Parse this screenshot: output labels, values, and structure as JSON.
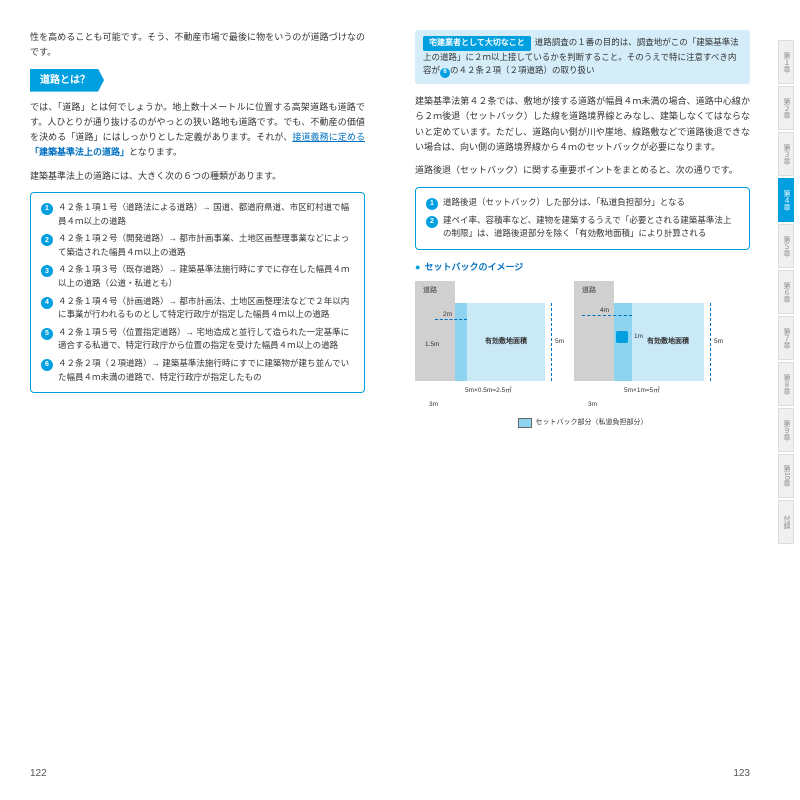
{
  "left": {
    "intro": "性を高めることも可能です。そう、不動産市場で最後に物をいうのが道路づけなのです。",
    "section": "道路とは？",
    "p1a": "では、「道路」とは何でしょうか。地上数十メートルに位置する高架道路も道路です。人ひとりが通り抜けるのがやっとの狭い路地も道路です。でも、不動産の価値を決める「道路」にはしっかりとした定義があります。それが、",
    "p1b": "接道義務に定める",
    "p1c": "「建築基準法上の道路」",
    "p1d": "となります。",
    "p2": "建築基準法上の道路には、大きく次の６つの種類があります。",
    "items": [
      {
        "n": "1",
        "t": "４２条１項１号（道路法による道路）→ 国道、都道府県道、市区町村道で幅員４ｍ以上の道路"
      },
      {
        "n": "2",
        "t": "４２条１項２号（開発道路）→ 都市計画事業、土地区画整理事業などによって築造された幅員４ｍ以上の道路"
      },
      {
        "n": "3",
        "t": "４２条１項３号（既存道路）→ 建築基準法施行時にすでに存在した幅員４ｍ以上の道路（公道・私道とも）"
      },
      {
        "n": "4",
        "t": "４２条１項４号（計画道路）→ 都市計画法、土地区画整理法などで２年以内に事業が行われるものとして特定行政庁が指定した幅員４ｍ以上の道路"
      },
      {
        "n": "5",
        "t": "４２条１項５号（位置指定道路）→ 宅地造成と並行して造られた一定基準に適合する私道で、特定行政庁から位置の指定を受けた幅員４ｍ以上の道路"
      },
      {
        "n": "6",
        "t": "４２条２項（２項道路）→ 建築基準法施行時にすでに建築物が建ち並んでいた幅員４ｍ未満の道路で、特定行政庁が指定したもの"
      }
    ],
    "pagenum": "122"
  },
  "right": {
    "hb_label": "宅建業者として大切なこと",
    "hb_text1": "道路調査の１番の目的は、調査地がこの「建築基準法上の道路」に２ｍ以上接しているかを判断すること。そのうえで特に注意すべき内容が",
    "hb_num": "6",
    "hb_text2": "の４２条２項（２項道路）の取り扱い",
    "p1": "建築基準法第４２条では、敷地が接する道路が幅員４ｍ未満の場合、道路中心線から２ｍ後退（セットバック）した線を道路境界線とみなし、建築しなくてはならないと定めています。ただし、道路向い側が川や崖地、線路敷などで道路後退できない場合は、向い側の道路境界線から４ｍのセットバックが必要になります。",
    "p2": "道路後退（セットバック）に関する重要ポイントをまとめると、次の通りです。",
    "items": [
      {
        "n": "1",
        "t": "道路後退（セットバック）した部分は、「私道負担部分」となる"
      },
      {
        "n": "2",
        "t": "建ペイ率、容積率など、建物を建築するうえで「必要とされる建築基準法上の制限」は、道路後退部分を除く「有効敷地面積」により計算される"
      }
    ],
    "diag_title": "セットバックのイメージ",
    "d": {
      "road": "道路",
      "land": "有効敷地面積",
      "left": {
        "w2m": "2m",
        "w15": "1.5m",
        "calc": "5m×0.5m=2.5㎡",
        "base": "3m",
        "h": "5m"
      },
      "right": {
        "w4m": "4m",
        "w1m": "1m",
        "calc": "5m×1m=5㎡",
        "base": "3m",
        "h": "5m",
        "sb": "1m"
      }
    },
    "legend": "セットバック部分（私道負担部分）",
    "pagenum": "123"
  },
  "tabs": [
    "第１章",
    "第２章",
    "第３章",
    "第４章",
    "第５章",
    "第６章",
    "第７章",
    "第８章",
    "第９章",
    "第10章",
    "付録"
  ],
  "active_tab": 3,
  "colors": {
    "accent": "#00a0e0",
    "link": "#0070c0",
    "setback": "#8ed4f0",
    "land": "#c9e9f7",
    "road": "#d0d0d0"
  }
}
